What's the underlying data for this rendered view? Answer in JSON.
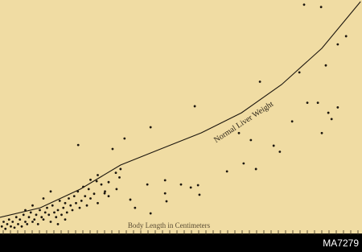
{
  "chart_data": {
    "type": "scatter",
    "x_label": "Body Length in Centimeters",
    "xlim": [
      0,
      100
    ],
    "ylim": [
      0,
      100
    ],
    "color": "#1c160e",
    "x": [
      0.5,
      1,
      1.5,
      2,
      2.5,
      3,
      3.5,
      4,
      4.5,
      5,
      5.5,
      6,
      6.5,
      7,
      7.5,
      8,
      8.5,
      9,
      9.5,
      10,
      10.5,
      11,
      11.5,
      12,
      12.5,
      13,
      13.5,
      14,
      14.5,
      15,
      15.5,
      16,
      16.5,
      17,
      17.5,
      18,
      18.5,
      19,
      19.5,
      20,
      20.5,
      21,
      21.5,
      22,
      22.5,
      23,
      23.5,
      24,
      24.5,
      25,
      26,
      27,
      28,
      29,
      30,
      14,
      16,
      18,
      9,
      12,
      7,
      25,
      27,
      30,
      32,
      33,
      84,
      88.7,
      95.6,
      93.3,
      90,
      82.7,
      71.8,
      87.8,
      90.7,
      91.6,
      84.9,
      80.7,
      93.3,
      88.9,
      69.3,
      75.6,
      77.3,
      67.3,
      62.7,
      70.7,
      41.6,
      53.8,
      66,
      54.7,
      55.1,
      52.7,
      34.4,
      31.1,
      21.6,
      45.6,
      45.6,
      46,
      40.7,
      36,
      37.3,
      50,
      41.6,
      33.3,
      28.9,
      26.7,
      32.2
    ],
    "y": [
      3,
      5,
      2,
      4,
      6,
      3,
      5,
      2.5,
      7,
      4,
      6,
      3,
      8,
      5,
      4,
      7,
      9,
      5,
      6,
      8,
      4,
      10,
      7,
      6,
      9,
      11,
      8,
      5,
      12,
      9,
      7,
      10,
      14,
      8,
      11,
      13,
      9,
      15,
      12,
      10,
      16,
      13,
      18,
      11,
      14,
      20,
      16,
      12,
      19,
      15,
      17,
      13,
      21,
      18,
      16,
      18,
      4,
      6,
      12,
      15,
      10,
      23,
      25,
      22,
      26,
      24,
      98,
      97,
      84.5,
      81,
      72,
      69,
      65,
      56,
      51.7,
      49,
      56,
      48,
      54,
      43,
      40,
      37.6,
      35,
      30,
      26.6,
      27.6,
      45.5,
      54.5,
      43,
      20.7,
      16.6,
      19.7,
      40.7,
      36.2,
      37.9,
      22.8,
      17.2,
      13.8,
      21,
      14.5,
      11,
      21,
      8.6,
      27.6,
      17.2,
      22.4,
      19
    ],
    "curve": {
      "label": "Normal Liver Weight",
      "x": [
        0,
        11.1,
        22.2,
        33.3,
        44.4,
        55.6,
        66.7,
        77.8,
        88.9,
        99.6
      ],
      "y": [
        6.9,
        11,
        19,
        29.3,
        36.2,
        43.1,
        51.7,
        63.8,
        79.3,
        99.3
      ]
    }
  },
  "image_id": "MA7279"
}
